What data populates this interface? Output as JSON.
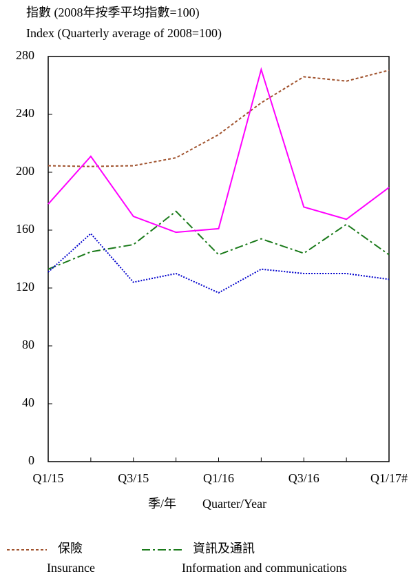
{
  "chart_data": {
    "type": "line",
    "y_title": "指數 (2008年按季平均指數=100)",
    "y_title_en": "Index (Quarterly average of 2008=100)",
    "x_title": "季/年",
    "x_title_en": "Quarter/Year",
    "categories": [
      "Q1/15",
      null,
      "Q3/15",
      null,
      "Q1/16",
      null,
      "Q3/16",
      null,
      "Q1/17#"
    ],
    "ylim": [
      0,
      280
    ],
    "yticks": [
      0,
      40,
      80,
      120,
      160,
      200,
      240,
      280
    ],
    "series": [
      {
        "name": "保險",
        "name_en": "Insurance",
        "color": "#a0522d",
        "dash": "4,3",
        "values": [
          204.5,
          204,
          204.5,
          210,
          226,
          248,
          266,
          263,
          270.5
        ]
      },
      {
        "name": "資訊及通訊",
        "name_en": "Information and communications",
        "color": "#1a7a1a",
        "dash": "12,4,3,4",
        "values": [
          133,
          145,
          150,
          173,
          143,
          154,
          144,
          164,
          143
        ]
      },
      {
        "color": "#ff00ff",
        "dash": "",
        "values": [
          178,
          211,
          169.5,
          158.5,
          161,
          271,
          176,
          167.5,
          189.5
        ]
      },
      {
        "color": "#0000cc",
        "dash": "2,2",
        "values": [
          131,
          157.6,
          124,
          130,
          116.7,
          133,
          130,
          130,
          126
        ]
      }
    ]
  }
}
